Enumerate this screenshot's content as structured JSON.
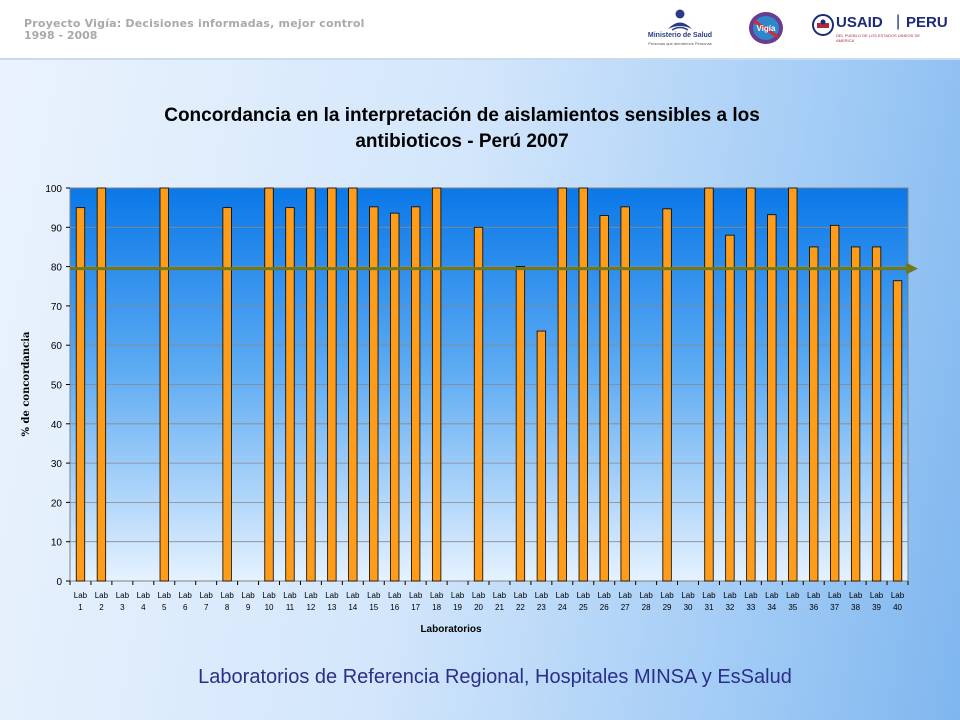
{
  "header": {
    "project_line1": "Proyecto Vigía: Decisiones informadas, mejor control",
    "project_line2": "1998 - 2008",
    "logos": {
      "minsa": {
        "text": "Ministerio de Salud",
        "subtext": "Personas que atendemos Personas",
        "icon": "minsa-person-icon"
      },
      "vigia": {
        "text": "Vigía",
        "icon": "vigia-logo-icon"
      },
      "usaid": {
        "text": "USAID",
        "country": "PERU",
        "subtext": "DEL PUEBLO DE LOS ESTADOS UNIDOS DE AMERICA",
        "icon": "usaid-seal-icon"
      }
    }
  },
  "chart_data": {
    "type": "bar",
    "title_line1": "Concordancia en la interpretación de aislamientos sensibles a los",
    "title_line2": "antibioticos - Perú 2007",
    "xlabel": "Laboratorios",
    "ylabel": "% de concordancia",
    "ylim": [
      0,
      100
    ],
    "yticks": [
      0,
      10,
      20,
      30,
      40,
      50,
      60,
      70,
      80,
      90,
      100
    ],
    "grid": true,
    "categories": [
      [
        "Lab",
        "1"
      ],
      [
        "Lab",
        "2"
      ],
      [
        "Lab",
        "3"
      ],
      [
        "Lab",
        "4"
      ],
      [
        "Lab",
        "5"
      ],
      [
        "Lab",
        "6"
      ],
      [
        "Lab",
        "7"
      ],
      [
        "Lab",
        "8"
      ],
      [
        "Lab",
        "9"
      ],
      [
        "Lab",
        "10"
      ],
      [
        "Lab",
        "11"
      ],
      [
        "Lab",
        "12"
      ],
      [
        "Lab",
        "13"
      ],
      [
        "Lab",
        "14"
      ],
      [
        "Lab",
        "15"
      ],
      [
        "Lab",
        "16"
      ],
      [
        "Lab",
        "17"
      ],
      [
        "Lab",
        "18"
      ],
      [
        "Lab",
        "19"
      ],
      [
        "Lab",
        "20"
      ],
      [
        "Lab",
        "21"
      ],
      [
        "Lab",
        "22"
      ],
      [
        "Lab",
        "23"
      ],
      [
        "Lab",
        "24"
      ],
      [
        "Lab",
        "25"
      ],
      [
        "Lab",
        "26"
      ],
      [
        "Lab",
        "27"
      ],
      [
        "Lab",
        "28"
      ],
      [
        "Lab",
        "29"
      ],
      [
        "Lab",
        "30"
      ],
      [
        "Lab",
        "31"
      ],
      [
        "Lab",
        "32"
      ],
      [
        "Lab",
        "33"
      ],
      [
        "Lab",
        "34"
      ],
      [
        "Lab",
        "35"
      ],
      [
        "Lab",
        "36"
      ],
      [
        "Lab",
        "37"
      ],
      [
        "Lab",
        "38"
      ],
      [
        "Lab",
        "39"
      ],
      [
        "Lab",
        "40"
      ]
    ],
    "values": [
      95,
      100,
      0,
      0,
      100,
      0,
      0,
      95,
      0,
      100,
      95,
      100,
      100,
      100,
      95.2,
      93.6,
      95.2,
      100,
      0,
      90,
      0,
      80,
      63.6,
      100,
      100,
      93,
      95.2,
      0,
      94.7,
      0,
      100,
      88,
      100,
      93.2,
      100,
      85,
      90.5,
      85,
      85,
      76.4
    ],
    "reference_line": 79.5,
    "colors": {
      "bar": "#ff9c1a",
      "bar_stroke": "#000000",
      "reference": "#6b7a1e",
      "plot_bg_top": "#0a78e8",
      "plot_bg_bottom": "#e6f2ff"
    }
  },
  "footer": {
    "caption": "Laboratorios de Referencia Regional, Hospitales MINSA y EsSalud"
  }
}
